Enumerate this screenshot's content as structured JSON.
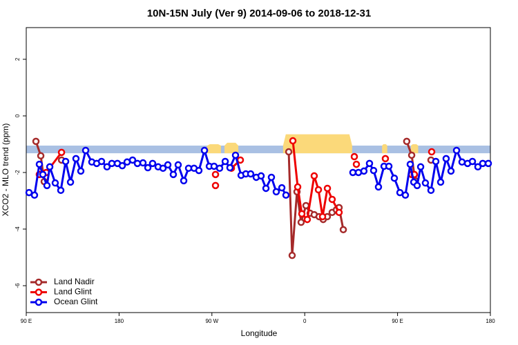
{
  "chart_data": {
    "type": "line",
    "title": "10N-15N July (Ver 9)   2014-09-06 to 2018-12-31",
    "x_label": "Longitude",
    "y_label": "XCO2 - MLO trend (ppm)",
    "xlim": [
      90,
      540
    ],
    "ylim": [
      -6.95,
      3.12
    ],
    "xticks": [
      {
        "value": 90,
        "label": "90 E"
      },
      180,
      {
        "value": 270,
        "label": "90 W"
      },
      {
        "value": 360,
        "label": "0"
      },
      {
        "value": 450,
        "label": "90 E"
      },
      {
        "value": 540,
        "label": "180"
      }
    ],
    "yticks": [
      -6,
      -4,
      -2,
      0,
      2
    ],
    "legend": "bottom-left",
    "band": {
      "color": "#a9c0e3",
      "range": [
        -1.32,
        -1.05
      ]
    },
    "land_color": "#fbd97a",
    "land_regions": [
      [
        265.4,
        278.8,
        -1.0
      ],
      [
        282.2,
        295.6,
        -0.95
      ],
      [
        339.0,
        406.0,
        -0.65
      ],
      [
        435.0,
        440.0,
        -1.0
      ],
      [
        463.0,
        470.0,
        -1.0
      ]
    ],
    "series": [
      {
        "name": "Land Nadir",
        "color": "#a52a2a",
        "x": [
          99.4,
          104.1,
          107.4,
          null,
          124.2,
          null,
          344.5,
          347.8,
          352.5,
          356.5,
          361.2,
          365.2,
          369.2,
          373.9,
          377.9,
          381.9,
          386.6,
          390.7,
          393.3,
          397.4,
          null,
          458.9,
          463.7,
          467.0,
          null,
          482.4
        ],
        "values": [
          -0.9,
          -1.41,
          -2.32,
          null,
          -1.56,
          null,
          -1.27,
          -4.93,
          -2.68,
          -3.76,
          -3.17,
          -3.44,
          -3.49,
          -3.56,
          -3.66,
          -3.56,
          -3.41,
          -3.32,
          -3.24,
          -4.02,
          null,
          -0.9,
          -1.39,
          -2.29,
          null,
          -1.56
        ]
      },
      {
        "name": "Land Glint",
        "color": "#ee0000",
        "x": [
          102.7,
          109.4,
          124.2,
          null,
          273.5,
          null,
          273.5,
          null,
          288.9,
          297.6,
          null,
          348.5,
          353.2,
          357.2,
          362.5,
          369.2,
          373.3,
          377.3,
          382.0,
          386.6,
          393.3,
          null,
          408.1,
          null,
          410.1,
          null,
          438.2,
          null,
          463.7,
          466.3,
          null,
          483.1
        ],
        "values": [
          -2.07,
          -2.0,
          -1.29,
          null,
          -2.07,
          null,
          -2.46,
          null,
          -1.85,
          -1.56,
          null,
          -0.88,
          -2.51,
          -3.46,
          -3.66,
          -2.12,
          -2.61,
          -3.56,
          -2.56,
          -2.95,
          -3.41,
          null,
          -1.44,
          null,
          -1.71,
          null,
          -1.51,
          null,
          -2.07,
          -2.07,
          null,
          -1.27
        ]
      },
      {
        "name": "Ocean Glint",
        "color": "#0000ee",
        "x": [
          92.7,
          98.0,
          102.7,
          106.1,
          110.1,
          112.8,
          118.1,
          123.5,
          128.2,
          132.9,
          138.2,
          142.9,
          147.6,
          153.6,
          158.3,
          163.0,
          168.3,
          173.0,
          178.4,
          183.1,
          187.8,
          193.1,
          197.8,
          203.2,
          207.9,
          212.5,
          217.9,
          222.6,
          227.3,
          232.6,
          237.3,
          242.7,
          247.4,
          252.7,
          257.4,
          262.8,
          267.5,
          272.1,
          277.5,
          282.9,
          287.5,
          292.9,
          298.3,
          302.9,
          307.6,
          313.0,
          317.7,
          322.4,
          327.7,
          332.4,
          337.8,
          341.8,
          null,
          406.7,
          412.1,
          417.4,
          422.8,
          426.8,
          431.5,
          436.9,
          441.6,
          446.9,
          452.3,
          457.6,
          462.3,
          465.7,
          469.0,
          472.4,
          477.0,
          482.4,
          487.1,
          491.8,
          497.1,
          501.8,
          507.2,
          512.5,
          517.9,
          522.6,
          527.9,
          532.6,
          538.0
        ],
        "values": [
          -2.71,
          -2.8,
          -1.71,
          -2.07,
          -2.46,
          -1.8,
          -2.37,
          -2.63,
          -1.61,
          -2.34,
          -1.51,
          -1.95,
          -1.22,
          -1.63,
          -1.68,
          -1.61,
          -1.8,
          -1.68,
          -1.68,
          -1.76,
          -1.63,
          -1.56,
          -1.68,
          -1.66,
          -1.83,
          -1.68,
          -1.8,
          -1.85,
          -1.73,
          -2.07,
          -1.73,
          -2.29,
          -1.85,
          -1.85,
          -1.93,
          -1.22,
          -1.78,
          -1.78,
          -1.85,
          -1.61,
          -1.83,
          -1.39,
          -2.1,
          -2.05,
          -2.05,
          -2.17,
          -2.12,
          -2.56,
          -2.17,
          -2.68,
          -2.54,
          -2.8,
          null,
          -2.0,
          -2.0,
          -1.95,
          -1.68,
          -1.93,
          -2.51,
          -1.78,
          -1.78,
          -2.2,
          -2.71,
          -2.8,
          -1.71,
          -2.34,
          -2.46,
          -1.8,
          -2.37,
          -2.63,
          -1.61,
          -2.34,
          -1.51,
          -1.95,
          -1.22,
          -1.63,
          -1.68,
          -1.61,
          -1.8,
          -1.68,
          -1.68
        ]
      }
    ]
  }
}
